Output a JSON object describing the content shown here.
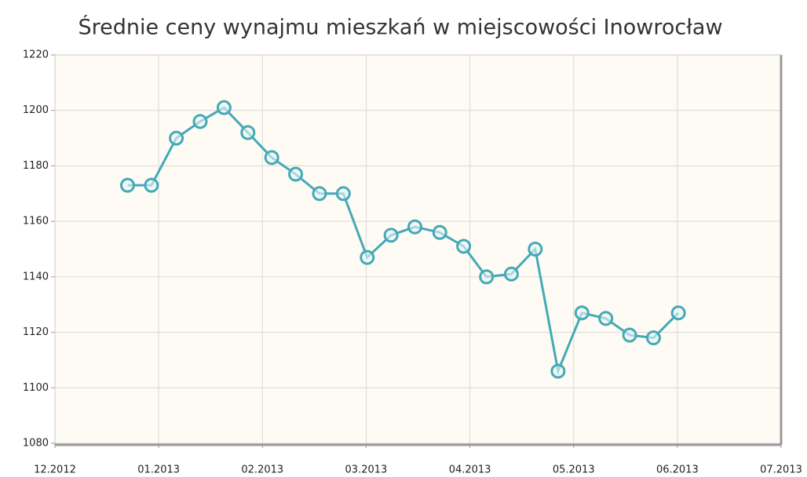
{
  "chart_data": {
    "type": "line",
    "title": "Średnie ceny wynajmu mieszkań w miejscowości Inowrocław",
    "x": [
      0.7,
      0.93,
      1.17,
      1.4,
      1.63,
      1.86,
      2.09,
      2.32,
      2.55,
      2.78,
      3.01,
      3.24,
      3.47,
      3.71,
      3.94,
      4.16,
      4.4,
      4.63,
      4.85,
      5.08,
      5.31,
      5.54,
      5.77,
      6.01
    ],
    "series": [
      {
        "name": "Inowrocław",
        "color": "#45a9b6",
        "values": [
          1173,
          1173,
          1190,
          1196,
          1201,
          1192,
          1183,
          1177,
          1170,
          1170,
          1147,
          1155,
          1158,
          1156,
          1151,
          1140,
          1141,
          1150,
          1106,
          1127,
          1125,
          1119,
          1118,
          1127
        ]
      }
    ],
    "xlim": [
      0,
      7
    ],
    "xticks": [
      {
        "value": 0,
        "label": "12.2012"
      },
      {
        "value": 1,
        "label": "01.2013"
      },
      {
        "value": 2,
        "label": "02.2013"
      },
      {
        "value": 3,
        "label": "03.2013"
      },
      {
        "value": 4,
        "label": "04.2013"
      },
      {
        "value": 5,
        "label": "05.2013"
      },
      {
        "value": 6,
        "label": "06.2013"
      },
      {
        "value": 7,
        "label": "07.2013"
      }
    ],
    "ylim": [
      1080,
      1220
    ],
    "yticks": [
      1080,
      1100,
      1120,
      1140,
      1160,
      1180,
      1200,
      1220
    ],
    "grid": true
  }
}
